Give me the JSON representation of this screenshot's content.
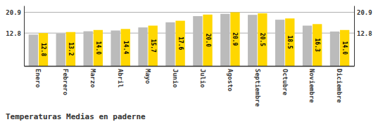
{
  "chart_data": {
    "type": "bar",
    "title": "Temperaturas Medias en paderne",
    "categories": [
      "Enero",
      "Febrero",
      "Marzo",
      "Abril",
      "Mayo",
      "Junio",
      "Julio",
      "Agosto",
      "Septiembre",
      "Octubre",
      "Noviembre",
      "Diciembre"
    ],
    "series": [
      {
        "color": "#BBBBBB",
        "values": [
          12.2,
          12.6,
          13.5,
          13.8,
          15.0,
          17.0,
          19.4,
          20.3,
          19.9,
          18.0,
          15.7,
          13.4
        ]
      },
      {
        "color": "#FFD700",
        "values": [
          12.8,
          13.2,
          14.0,
          14.4,
          15.7,
          17.6,
          20.0,
          20.9,
          20.5,
          18.5,
          16.3,
          14.0
        ],
        "value_labels": [
          "12.8",
          "13.2",
          "14.0",
          "14.4",
          "15.7",
          "17.6",
          "20.0",
          "20.9",
          "20.5",
          "18.5",
          "16.3",
          "14.0"
        ]
      }
    ],
    "ylim": [
      0.0,
      23.5
    ],
    "yticks": [
      12.8,
      20.9
    ],
    "y2lim": [
      0.0,
      23.5
    ],
    "y2ticks": [
      12.8,
      20.9
    ],
    "grid": true
  }
}
